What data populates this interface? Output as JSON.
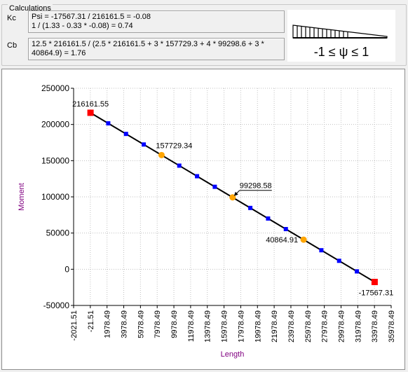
{
  "calculations": {
    "group_title": "Calculations",
    "kc_label": "Kc",
    "kc_line1": "Psi = -17567.31 / 216161.5 = -0.08",
    "kc_line2": "1 / (1.33 - 0.33 * -0.08) = 0.74",
    "cb_label": "Cb",
    "cb_line1": "12.5 * 216161.5 / (2.5 * 216161.5 + 3 * 157729.3 + 4 * 99298.6 + 3 *",
    "cb_line2": "40864.9) = 1.76",
    "psi_range": "-1 ≤ ψ ≤ 1"
  },
  "chart_data": {
    "type": "line",
    "xlabel": "Length",
    "ylabel": "Moment",
    "xlim": [
      -2021.51,
      35978.49
    ],
    "ylim": [
      -50000,
      250000
    ],
    "x_ticks": [
      -2021.51,
      -21.51,
      1978.49,
      3978.49,
      5978.49,
      7978.49,
      9978.49,
      11978.49,
      13978.49,
      15978.49,
      17978.49,
      19978.49,
      21978.49,
      23978.49,
      25978.49,
      27978.49,
      29978.49,
      31978.49,
      33978.49,
      35978.49
    ],
    "x_tick_labels": [
      "-2021.51",
      "-21.51",
      "1978.49",
      "3978.49",
      "5978.49",
      "7978.49",
      "9978.49",
      "11978.49",
      "13978.49",
      "15978.49",
      "17978.49",
      "19978.49",
      "21978.49",
      "23978.49",
      "25978.49",
      "27978.49",
      "29978.49",
      "31978.49",
      "33978.49",
      "35978.49"
    ],
    "y_ticks": [
      -50000,
      0,
      50000,
      100000,
      150000,
      200000,
      250000
    ],
    "y_tick_labels": [
      "-50000",
      "0",
      "50000",
      "100000",
      "150000",
      "200000",
      "250000"
    ],
    "grid": true,
    "series": [
      {
        "role": "moment line",
        "color": "#000000",
        "x": [
          0,
          34000
        ],
        "y": [
          216161.55,
          -17567.31
        ]
      },
      {
        "role": "segment points",
        "color": "#0000ff",
        "marker": "square",
        "x": [
          2124,
          4249,
          6374,
          8499,
          10624,
          12749,
          14874,
          16999,
          19124,
          21249,
          23374,
          25499,
          27624,
          29749,
          31874
        ],
        "y": [
          201553,
          186945,
          172337,
          157729,
          143121,
          128513,
          113905,
          99297,
          84689,
          70081,
          55473,
          40865,
          26257,
          11649,
          -2959
        ]
      },
      {
        "role": "quarter points",
        "color": "#ffa500",
        "marker": "circle",
        "x": [
          8500,
          17000,
          25500
        ],
        "y": [
          157729.34,
          99298.58,
          40864.91
        ]
      },
      {
        "role": "end points",
        "color": "#ff0000",
        "marker": "square",
        "x": [
          0,
          34000
        ],
        "y": [
          216161.55,
          -17567.31
        ]
      }
    ],
    "annotations": [
      {
        "text": "216161.55",
        "x": 0,
        "y": 216161.55,
        "anchor": "above"
      },
      {
        "text": "157729.34",
        "x": 8500,
        "y": 157729.34,
        "anchor": "right-above"
      },
      {
        "text": "99298.58",
        "x": 17000,
        "y": 99298.58,
        "anchor": "arrow-up-right"
      },
      {
        "text": "40864.91",
        "x": 25500,
        "y": 40864.91,
        "anchor": "left"
      },
      {
        "text": "-17567.31",
        "x": 34000,
        "y": -17567.31,
        "anchor": "below"
      }
    ],
    "colors": {
      "axis_label": "#800080",
      "grid": "#c0c0c0"
    }
  }
}
